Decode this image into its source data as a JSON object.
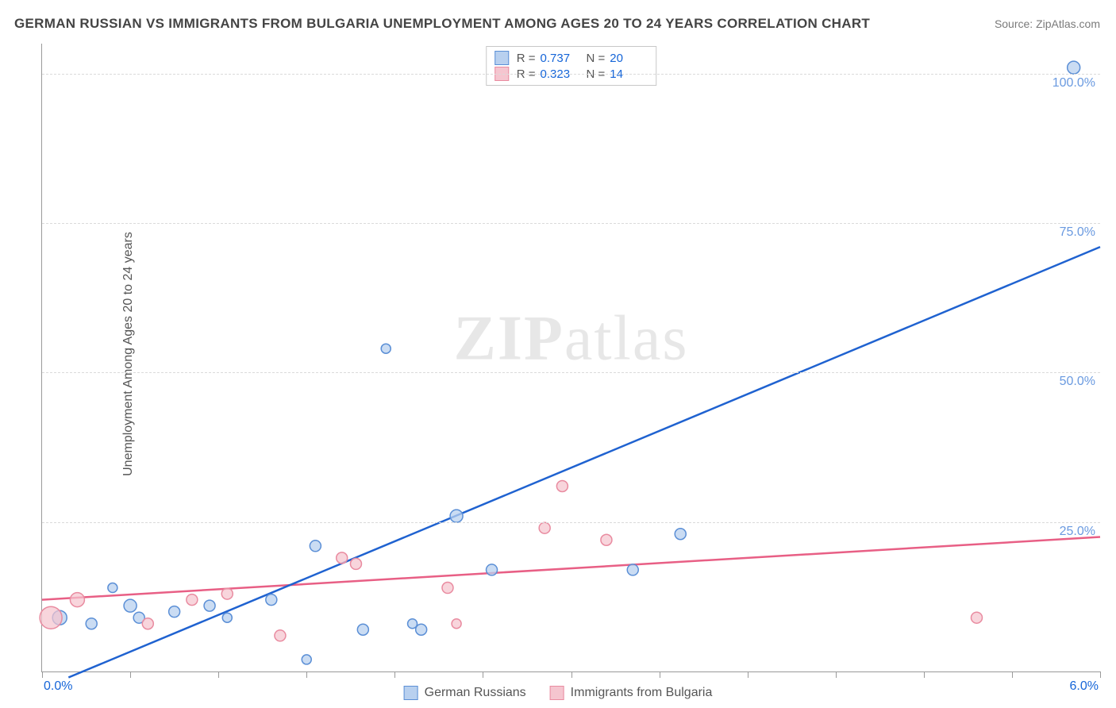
{
  "title": "GERMAN RUSSIAN VS IMMIGRANTS FROM BULGARIA UNEMPLOYMENT AMONG AGES 20 TO 24 YEARS CORRELATION CHART",
  "source": "Source: ZipAtlas.com",
  "watermark_a": "ZIP",
  "watermark_b": "atlas",
  "y_axis_label": "Unemployment Among Ages 20 to 24 years",
  "chart": {
    "type": "scatter",
    "xlim": [
      0,
      6
    ],
    "ylim": [
      0,
      105
    ],
    "x_tick_positions": [
      0,
      0.5,
      1.0,
      1.5,
      2.0,
      2.5,
      3.0,
      3.5,
      4.0,
      4.5,
      5.0,
      5.5,
      6.0
    ],
    "x_tick_labels": {
      "left": "0.0%",
      "right": "6.0%"
    },
    "y_gridlines": [
      25,
      50,
      75,
      100
    ],
    "y_tick_labels": [
      "25.0%",
      "50.0%",
      "75.0%",
      "100.0%"
    ],
    "background_color": "#ffffff",
    "grid_color": "#dadada",
    "axis_color": "#9a9a9a",
    "x_label_color": "#1565d8",
    "y_label_color": "#6a9ae0",
    "series": [
      {
        "name": "German Russians",
        "color_fill": "#b8d0ef",
        "color_stroke": "#5b8fd6",
        "line_color": "#1f62d0",
        "r_value": "0.737",
        "n_value": "20",
        "marker_radius": 7,
        "marker_opacity": 0.75,
        "regression": {
          "x1": 0.15,
          "y1": -1,
          "x2": 6.0,
          "y2": 71
        },
        "points": [
          {
            "x": 0.1,
            "y": 9,
            "r": 9
          },
          {
            "x": 0.28,
            "y": 8,
            "r": 7
          },
          {
            "x": 0.5,
            "y": 11,
            "r": 8
          },
          {
            "x": 0.55,
            "y": 9,
            "r": 7
          },
          {
            "x": 0.75,
            "y": 10,
            "r": 7
          },
          {
            "x": 0.95,
            "y": 11,
            "r": 7
          },
          {
            "x": 1.05,
            "y": 9,
            "r": 6
          },
          {
            "x": 1.3,
            "y": 12,
            "r": 7
          },
          {
            "x": 1.5,
            "y": 2,
            "r": 6
          },
          {
            "x": 1.55,
            "y": 21,
            "r": 7
          },
          {
            "x": 1.82,
            "y": 7,
            "r": 7
          },
          {
            "x": 1.95,
            "y": 54,
            "r": 6
          },
          {
            "x": 2.15,
            "y": 7,
            "r": 7
          },
          {
            "x": 2.35,
            "y": 26,
            "r": 8
          },
          {
            "x": 2.55,
            "y": 17,
            "r": 7
          },
          {
            "x": 3.35,
            "y": 17,
            "r": 7
          },
          {
            "x": 3.62,
            "y": 23,
            "r": 7
          },
          {
            "x": 5.85,
            "y": 101,
            "r": 8
          },
          {
            "x": 0.4,
            "y": 14,
            "r": 6
          },
          {
            "x": 2.1,
            "y": 8,
            "r": 6
          }
        ]
      },
      {
        "name": "Immigrants from Bulgaria",
        "color_fill": "#f5c5cf",
        "color_stroke": "#e98ba0",
        "line_color": "#e85f85",
        "r_value": "0.323",
        "n_value": "14",
        "marker_radius": 7,
        "marker_opacity": 0.72,
        "regression": {
          "x1": 0.0,
          "y1": 12,
          "x2": 6.0,
          "y2": 22.5
        },
        "points": [
          {
            "x": 0.05,
            "y": 9,
            "r": 14
          },
          {
            "x": 0.2,
            "y": 12,
            "r": 9
          },
          {
            "x": 0.6,
            "y": 8,
            "r": 7
          },
          {
            "x": 0.85,
            "y": 12,
            "r": 7
          },
          {
            "x": 1.05,
            "y": 13,
            "r": 7
          },
          {
            "x": 1.35,
            "y": 6,
            "r": 7
          },
          {
            "x": 1.7,
            "y": 19,
            "r": 7
          },
          {
            "x": 1.78,
            "y": 18,
            "r": 7
          },
          {
            "x": 2.3,
            "y": 14,
            "r": 7
          },
          {
            "x": 2.35,
            "y": 8,
            "r": 6
          },
          {
            "x": 2.85,
            "y": 24,
            "r": 7
          },
          {
            "x": 2.95,
            "y": 31,
            "r": 7
          },
          {
            "x": 3.2,
            "y": 22,
            "r": 7
          },
          {
            "x": 5.3,
            "y": 9,
            "r": 7
          }
        ]
      }
    ]
  },
  "legend_top": {
    "r_label": "R =",
    "n_label": "N ="
  },
  "legend_bottom": [
    "German Russians",
    "Immigrants from Bulgaria"
  ]
}
